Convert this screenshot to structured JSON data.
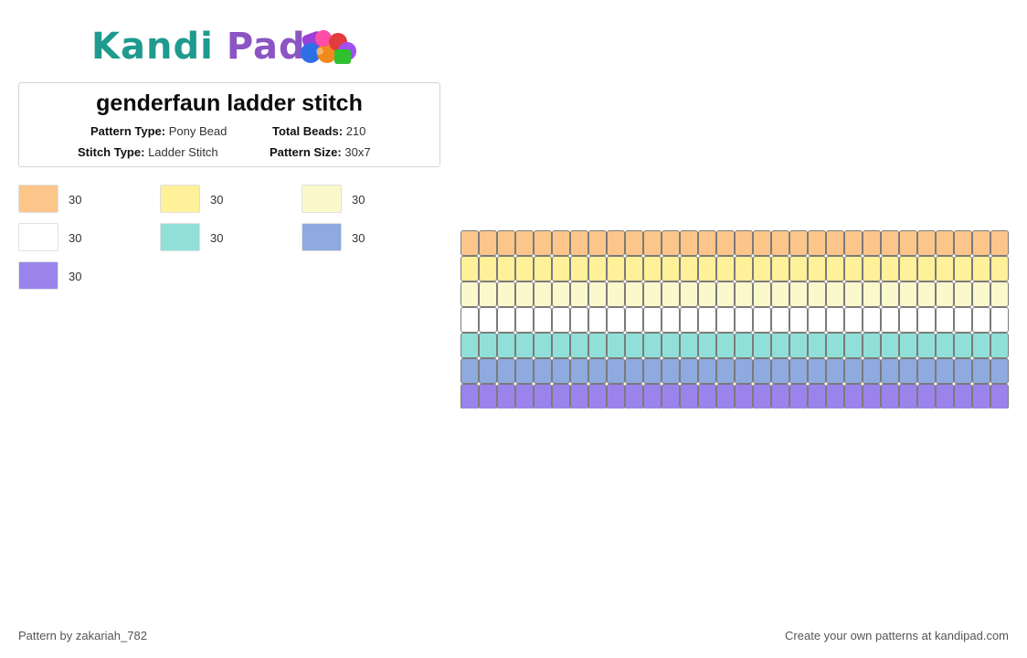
{
  "brand": {
    "word1": "Kandi",
    "word2": "Pad",
    "colors": {
      "kandi": "#1f9a8e",
      "pad": "#8b55c4"
    },
    "icon": "beads-logo-icon"
  },
  "pattern": {
    "title": "genderfaun ladder stitch",
    "pattern_type_label": "Pattern Type:",
    "pattern_type": "Pony Bead",
    "stitch_type_label": "Stitch Type:",
    "stitch_type": "Ladder Stitch",
    "total_beads_label": "Total Beads:",
    "total_beads": "210",
    "pattern_size_label": "Pattern Size:",
    "pattern_size": "30x7",
    "columns": 30,
    "rows": 7
  },
  "legend": [
    {
      "color": "#fcc68b",
      "count": "30"
    },
    {
      "color": "#fff09a",
      "count": "30"
    },
    {
      "color": "#fbf8cc",
      "count": "30"
    },
    {
      "color": "#ffffff",
      "count": "30"
    },
    {
      "color": "#91e0d8",
      "count": "30"
    },
    {
      "color": "#8eaadf",
      "count": "30"
    },
    {
      "color": "#9a84ec",
      "count": "30"
    }
  ],
  "footer": {
    "author": "Pattern by zakariah_782",
    "cta": "Create your own patterns at kandipad.com"
  }
}
